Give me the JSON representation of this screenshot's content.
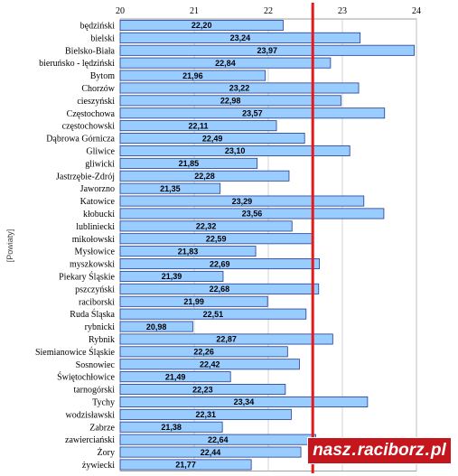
{
  "chart_data": {
    "type": "bar",
    "orientation": "horizontal",
    "title": "",
    "ylabel": "[Powiaty]",
    "xlabel": "",
    "xlim": [
      20,
      24
    ],
    "x_ticks": [
      "20",
      "21",
      "22",
      "23",
      "24"
    ],
    "grid": true,
    "reference_line": {
      "value": 22.6,
      "color": "#e31a1c"
    },
    "colors": {
      "bar_fill": "#99ccff",
      "bar_stroke": "#1f3a93",
      "grid": "#c8c8c8"
    },
    "categories": [
      "będziński",
      "bielski",
      "Bielsko-Biała",
      "bieruńsko - lędziński",
      "Bytom",
      "Chorzów",
      "cieszyński",
      "Częstochowa",
      "częstochowski",
      "Dąbrowa Górnicza",
      "Gliwice",
      "gliwicki",
      "Jastrzębie-Zdrój",
      "Jaworzno",
      "Katowice",
      "kłobucki",
      "lubliniecki",
      "mikołowski",
      "Mysłowice",
      "myszkowski",
      "Piekary Śląskie",
      "pszczyński",
      "raciborski",
      "Ruda Śląska",
      "rybnicki",
      "Rybnik",
      "Siemianowice Śląskie",
      "Sosnowiec",
      "Świętochłowice",
      "tarnogórski",
      "Tychy",
      "wodzisławski",
      "Zabrze",
      "zawierciański",
      "Żory",
      "żywiecki"
    ],
    "values": [
      22.2,
      23.24,
      23.97,
      22.84,
      21.96,
      23.22,
      22.98,
      23.57,
      22.11,
      22.49,
      23.1,
      21.85,
      22.28,
      21.35,
      23.29,
      23.56,
      22.32,
      22.59,
      21.83,
      22.69,
      21.39,
      22.68,
      21.99,
      22.51,
      20.98,
      22.87,
      22.26,
      22.42,
      21.49,
      22.23,
      23.34,
      22.31,
      21.38,
      22.64,
      22.44,
      21.77
    ],
    "value_labels": [
      "22,20",
      "23,24",
      "23,97",
      "22,84",
      "21,96",
      "23,22",
      "22,98",
      "23,57",
      "22,11",
      "22,49",
      "23,10",
      "21,85",
      "22,28",
      "21,35",
      "23,29",
      "23,56",
      "22,32",
      "22,59",
      "21,83",
      "22,69",
      "21,39",
      "22,68",
      "21,99",
      "22,51",
      "20,98",
      "22,87",
      "22,26",
      "22,42",
      "21,49",
      "22,23",
      "23,34",
      "22,31",
      "21,38",
      "22,64",
      "22,44",
      "21,77"
    ]
  },
  "watermark": {
    "part1": "nasz",
    "part2": "raciborz",
    "part3": "pl",
    "bg_color": "#c4161c"
  }
}
